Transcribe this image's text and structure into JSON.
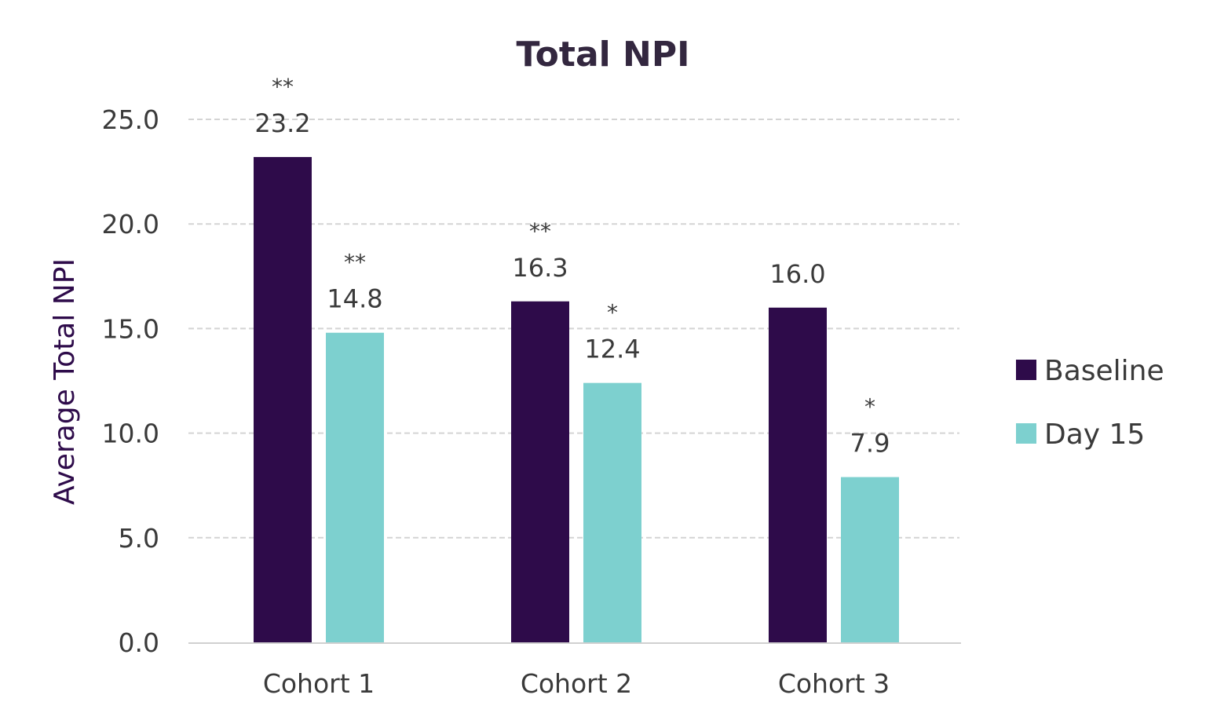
{
  "chart_data": {
    "type": "bar",
    "title": "Total NPI",
    "xlabel": "",
    "ylabel": "Average Total NPI",
    "ylim": [
      0,
      25
    ],
    "yticks": [
      "0.0",
      "5.0",
      "10.0",
      "15.0",
      "20.0",
      "25.0"
    ],
    "ytick_values": [
      0,
      5,
      10,
      15,
      20,
      25
    ],
    "grid": true,
    "legend_position": "right",
    "categories": [
      "Cohort 1",
      "Cohort 2",
      "Cohort 3"
    ],
    "series": [
      {
        "name": "Baseline",
        "color": "#2e0b4a",
        "values": [
          23.2,
          16.3,
          16.0
        ],
        "labels": [
          "23.2",
          "16.3",
          "16.0"
        ],
        "significance": [
          "**",
          "**",
          ""
        ]
      },
      {
        "name": "Day 15",
        "color": "#7dd0cf",
        "values": [
          14.8,
          12.4,
          7.9
        ],
        "labels": [
          "14.8",
          "12.4",
          "7.9"
        ],
        "significance": [
          "**",
          "*",
          "*"
        ]
      }
    ],
    "colors": {
      "title": "#33273f",
      "ylabel": "#2e0b4a",
      "text": "#3a3a3a",
      "grid": "#d4d4d4",
      "axis": "#d0d0d0"
    }
  }
}
